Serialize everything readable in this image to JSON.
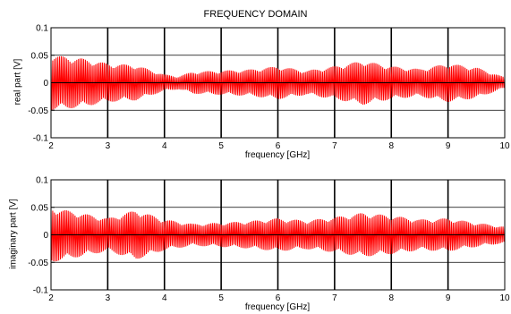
{
  "figure": {
    "title": "FREQUENCY DOMAIN"
  },
  "colors": {
    "signal": "#ff0000",
    "grid": "#000000",
    "axes": "#000000",
    "zero_line": "#000000"
  },
  "chart_data": [
    {
      "type": "line",
      "title": "FREQUENCY DOMAIN",
      "xlabel": "frequency [GHz]",
      "ylabel": "real part [V]",
      "xlim": [
        2,
        10
      ],
      "ylim": [
        -0.1,
        0.1
      ],
      "xticks": [
        2,
        3,
        4,
        5,
        6,
        7,
        8,
        9,
        10
      ],
      "xtick_labels": [
        "2",
        "3",
        "4",
        "5",
        "6",
        "7",
        "8",
        "9",
        "10"
      ],
      "yticks": [
        -0.1,
        -0.05,
        0,
        0.05,
        0.1
      ],
      "ytick_labels": [
        "-0.1",
        "-0.05",
        "0",
        "0.05",
        "0.1"
      ],
      "grid": true,
      "envelope": {
        "x": [
          2,
          2.5,
          3,
          3.5,
          4,
          4.25,
          4.5,
          5,
          5.5,
          6,
          6.5,
          7,
          7.5,
          8,
          8.5,
          9,
          9.5,
          10
        ],
        "amplitude": [
          0.05,
          0.045,
          0.035,
          0.032,
          0.015,
          0.012,
          0.02,
          0.022,
          0.024,
          0.03,
          0.022,
          0.03,
          0.04,
          0.03,
          0.025,
          0.035,
          0.028,
          0.01
        ]
      },
      "oscillations_per_ghz": 33
    },
    {
      "type": "line",
      "title": "",
      "xlabel": "frequency [GHz]",
      "ylabel": "imaginary part [V]",
      "xlim": [
        2,
        10
      ],
      "ylim": [
        -0.1,
        0.1
      ],
      "xticks": [
        2,
        3,
        4,
        5,
        6,
        7,
        8,
        9,
        10
      ],
      "xtick_labels": [
        "2",
        "3",
        "4",
        "5",
        "6",
        "7",
        "8",
        "9",
        "10"
      ],
      "yticks": [
        -0.1,
        -0.05,
        0,
        0.05,
        0.1
      ],
      "ytick_labels": [
        "-0.1",
        "-0.05",
        "0",
        "0.05",
        "0.1"
      ],
      "grid": true,
      "envelope": {
        "x": [
          2,
          2.5,
          3,
          3.5,
          4,
          4.5,
          5,
          5.5,
          6,
          6.5,
          7,
          7.5,
          8,
          8.5,
          9,
          9.5,
          10
        ],
        "amplitude": [
          0.05,
          0.04,
          0.03,
          0.045,
          0.028,
          0.02,
          0.022,
          0.025,
          0.03,
          0.026,
          0.032,
          0.04,
          0.035,
          0.028,
          0.03,
          0.022,
          0.015
        ]
      },
      "oscillations_per_ghz": 33
    }
  ]
}
